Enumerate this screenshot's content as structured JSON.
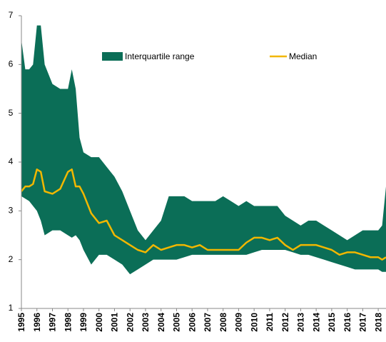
{
  "chart_data": {
    "type": "band-line",
    "x": [
      1995,
      1995.25,
      1995.5,
      1995.75,
      1996,
      1996.25,
      1996.5,
      1997,
      1997.5,
      1998,
      1998.25,
      1998.5,
      1998.75,
      1999,
      1999.5,
      2000,
      2000.5,
      2001,
      2001.5,
      2002,
      2002.5,
      2003,
      2003.5,
      2004,
      2004.5,
      2005,
      2005.5,
      2006,
      2006.5,
      2007,
      2007.5,
      2008,
      2008.5,
      2009,
      2009.5,
      2010,
      2010.5,
      2011,
      2011.5,
      2012,
      2012.5,
      2013,
      2013.5,
      2014,
      2014.5,
      2015,
      2015.5,
      2016,
      2016.5,
      2017,
      2017.5,
      2018,
      2018.25,
      2018.5
    ],
    "series": [
      {
        "name": "Interquartile range",
        "color": "#0b6e57",
        "high": [
          6.5,
          5.9,
          5.9,
          6.0,
          6.8,
          6.8,
          6.0,
          5.6,
          5.5,
          5.5,
          5.9,
          5.5,
          4.5,
          4.2,
          4.1,
          4.1,
          3.9,
          3.7,
          3.4,
          3.0,
          2.6,
          2.4,
          2.6,
          2.8,
          3.3,
          3.3,
          3.3,
          3.2,
          3.2,
          3.2,
          3.2,
          3.3,
          3.2,
          3.1,
          3.2,
          3.1,
          3.1,
          3.1,
          3.1,
          2.9,
          2.8,
          2.7,
          2.8,
          2.8,
          2.7,
          2.6,
          2.5,
          2.4,
          2.5,
          2.6,
          2.6,
          2.6,
          2.7,
          3.5
        ],
        "low": [
          3.3,
          3.25,
          3.2,
          3.1,
          3.0,
          2.8,
          2.5,
          2.6,
          2.6,
          2.5,
          2.45,
          2.5,
          2.4,
          2.2,
          1.9,
          2.1,
          2.1,
          2.0,
          1.9,
          1.7,
          1.8,
          1.9,
          2.0,
          2.0,
          2.0,
          2.0,
          2.05,
          2.1,
          2.1,
          2.1,
          2.1,
          2.1,
          2.1,
          2.1,
          2.1,
          2.15,
          2.2,
          2.2,
          2.2,
          2.2,
          2.15,
          2.1,
          2.1,
          2.05,
          2.0,
          1.95,
          1.9,
          1.85,
          1.8,
          1.8,
          1.8,
          1.8,
          1.75,
          1.75
        ]
      },
      {
        "name": "Median",
        "color": "#f2b700",
        "values": [
          3.4,
          3.5,
          3.5,
          3.55,
          3.85,
          3.8,
          3.4,
          3.35,
          3.45,
          3.8,
          3.85,
          3.5,
          3.5,
          3.35,
          2.95,
          2.75,
          2.8,
          2.5,
          2.4,
          2.3,
          2.2,
          2.15,
          2.3,
          2.2,
          2.25,
          2.3,
          2.3,
          2.25,
          2.3,
          2.2,
          2.2,
          2.2,
          2.2,
          2.2,
          2.35,
          2.45,
          2.45,
          2.4,
          2.45,
          2.3,
          2.2,
          2.3,
          2.3,
          2.3,
          2.25,
          2.2,
          2.1,
          2.15,
          2.15,
          2.1,
          2.05,
          2.05,
          2.0,
          2.05
        ]
      }
    ],
    "xlim": [
      1995,
      2018.5
    ],
    "xticks": [
      1995,
      1996,
      1997,
      1998,
      1999,
      2000,
      2001,
      2002,
      2003,
      2004,
      2005,
      2006,
      2007,
      2008,
      2009,
      2010,
      2011,
      2012,
      2013,
      2014,
      2015,
      2016,
      2017,
      2018
    ],
    "ylim": [
      1,
      7
    ],
    "yticks": [
      1,
      2,
      3,
      4,
      5,
      6,
      7
    ],
    "grid": false
  }
}
